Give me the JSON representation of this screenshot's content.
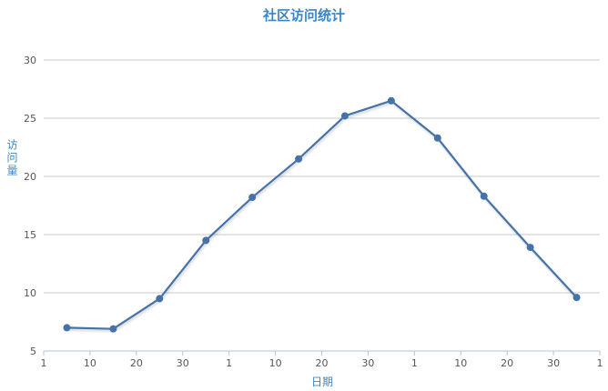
{
  "chart_data": {
    "type": "line",
    "title": "社区访问统计",
    "xlabel": "日期",
    "ylabel": "访问量",
    "ylim": [
      5,
      30
    ],
    "yticks": [
      5,
      10,
      15,
      20,
      25,
      30
    ],
    "xlim": [
      0,
      12
    ],
    "xticks": [
      {
        "x": 0,
        "label": "1"
      },
      {
        "x": 1,
        "label": "10"
      },
      {
        "x": 2,
        "label": "20"
      },
      {
        "x": 3,
        "label": "30"
      },
      {
        "x": 4,
        "label": "1"
      },
      {
        "x": 5,
        "label": "10"
      },
      {
        "x": 6,
        "label": "20"
      },
      {
        "x": 7,
        "label": "30"
      },
      {
        "x": 8,
        "label": "1"
      },
      {
        "x": 9,
        "label": "10"
      },
      {
        "x": 10,
        "label": "20"
      },
      {
        "x": 11,
        "label": "30"
      },
      {
        "x": 12,
        "label": "1"
      }
    ],
    "grid": true,
    "series": [
      {
        "name": "访问量",
        "color": "#4572a7",
        "points": [
          {
            "x": 0.5,
            "y": 7.0
          },
          {
            "x": 1.5,
            "y": 6.9
          },
          {
            "x": 2.5,
            "y": 9.5
          },
          {
            "x": 3.5,
            "y": 14.5
          },
          {
            "x": 4.5,
            "y": 18.2
          },
          {
            "x": 5.5,
            "y": 21.5
          },
          {
            "x": 6.5,
            "y": 25.2
          },
          {
            "x": 7.5,
            "y": 26.5
          },
          {
            "x": 8.5,
            "y": 23.3
          },
          {
            "x": 9.5,
            "y": 18.3
          },
          {
            "x": 10.5,
            "y": 13.9
          },
          {
            "x": 11.5,
            "y": 9.6
          }
        ]
      }
    ],
    "colors": {
      "grid": "#c8c8c8",
      "axis": "#b0c4de",
      "title": "#3a86c8"
    }
  }
}
